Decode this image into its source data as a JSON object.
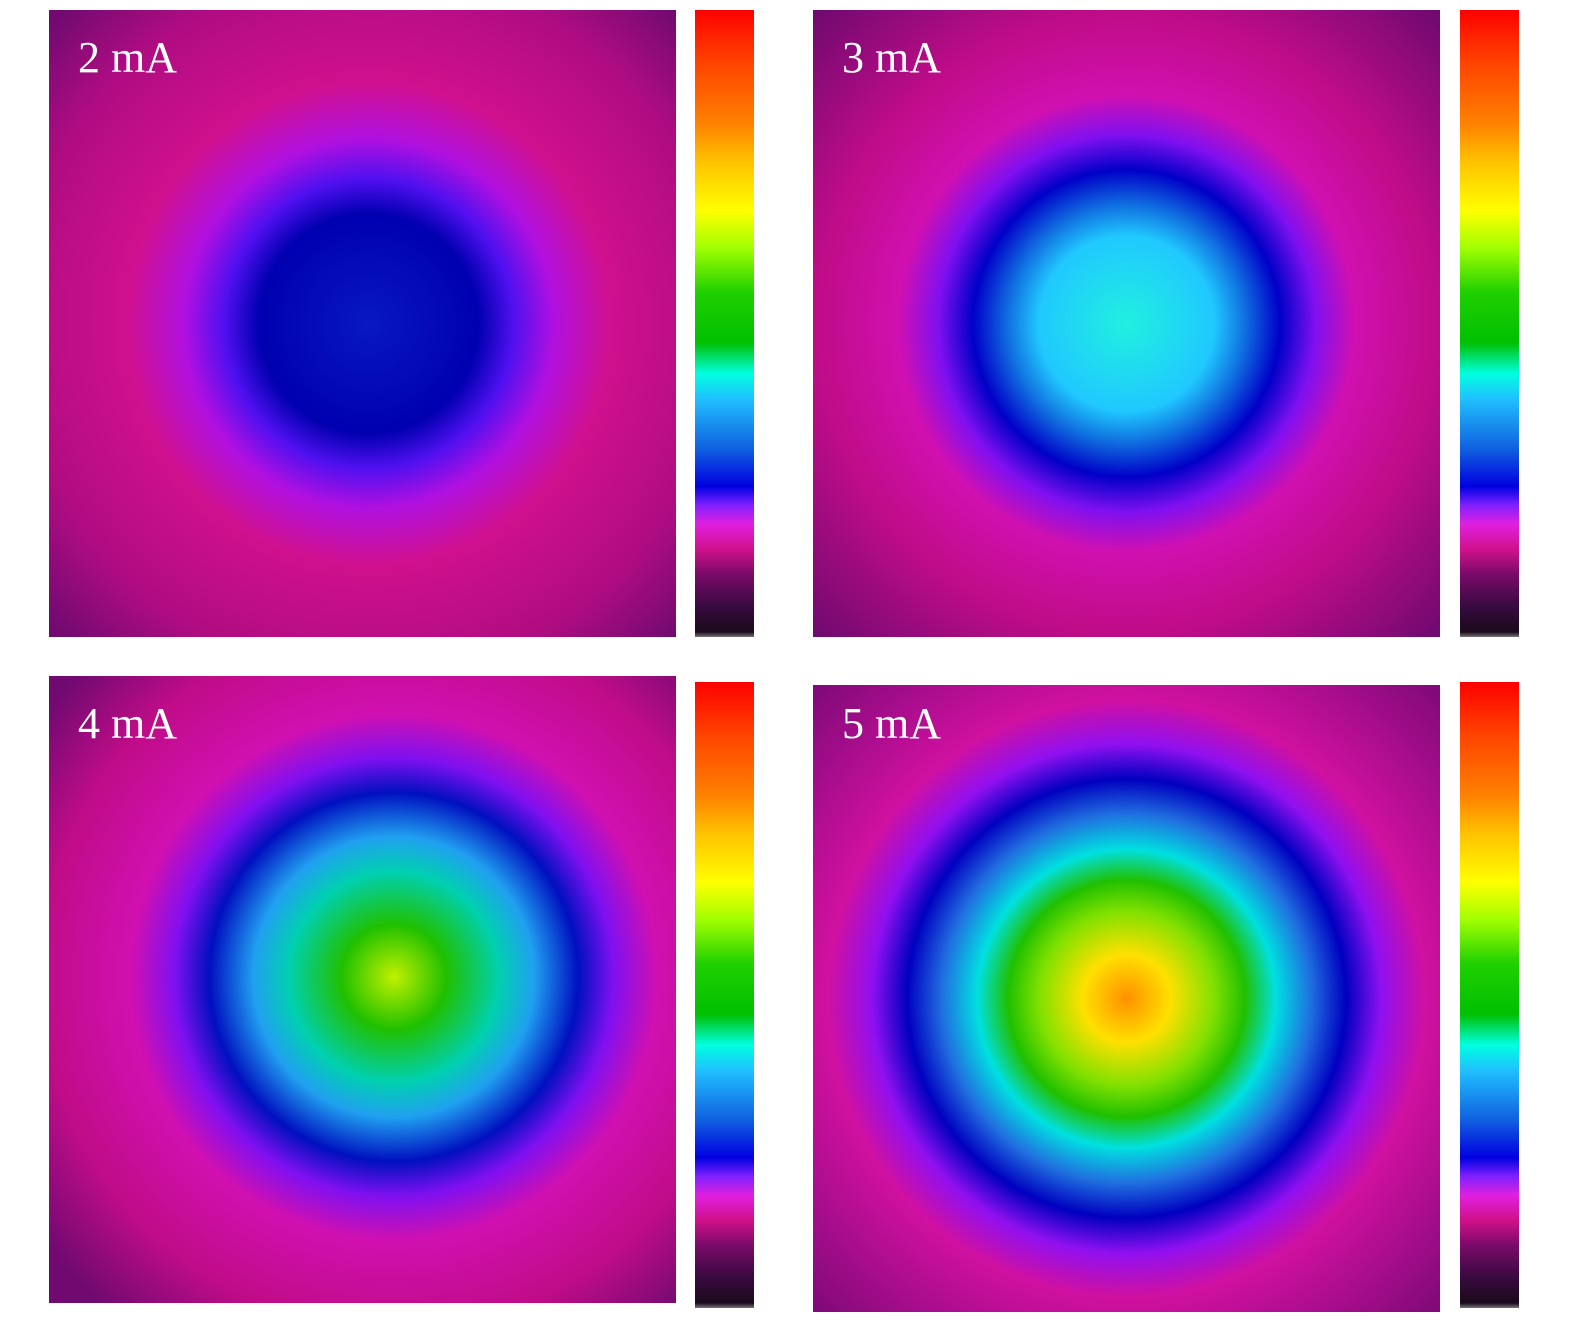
{
  "panels": [
    {
      "label": "2 mA"
    },
    {
      "label": "3 mA"
    },
    {
      "label": "4 mA"
    },
    {
      "label": "5 mA"
    }
  ]
}
